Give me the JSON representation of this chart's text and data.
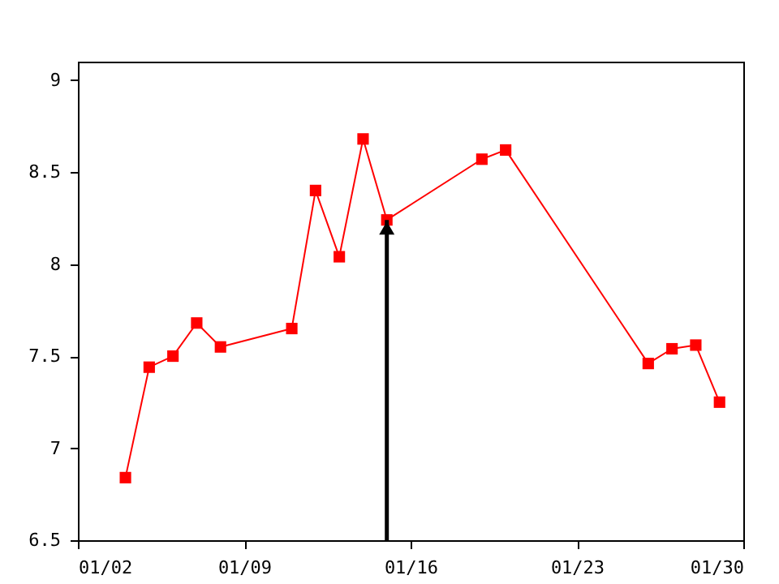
{
  "chart_data": {
    "type": "line",
    "x": [
      "--01-04",
      "--01-05",
      "--01-06",
      "--01-07",
      "--01-08",
      "--01-11",
      "--01-12",
      "--01-13",
      "--01-14",
      "--01-15",
      "--01-19",
      "--01-20",
      "--01-26",
      "--01-27",
      "--01-28",
      "--01-29"
    ],
    "series": [
      {
        "color": "#ff0000",
        "values": [
          6.84,
          7.44,
          7.5,
          7.68,
          7.55,
          7.65,
          8.4,
          8.04,
          8.68,
          8.24,
          8.57,
          8.62,
          7.46,
          7.54,
          7.56,
          7.25
        ]
      }
    ],
    "xlim": [
      "--01-02",
      "--01-30"
    ],
    "xticks": [
      {
        "value": "--01-02",
        "label": "01/02"
      },
      {
        "value": "--01-09",
        "label": "01/09"
      },
      {
        "value": "--01-16",
        "label": "01/16"
      },
      {
        "value": "--01-23",
        "label": "01/23"
      },
      {
        "value": "--01-30",
        "label": "01/30"
      }
    ],
    "ylim": [
      6.5,
      9.1
    ],
    "yticks": [
      6.5,
      7,
      7.5,
      8,
      8.5,
      9
    ],
    "ref_lines": [
      {
        "axis": "x",
        "value": "--01-15",
        "color": "#000000"
      }
    ],
    "marker": "square",
    "line_style": "solid",
    "grid": false,
    "legend": false
  }
}
